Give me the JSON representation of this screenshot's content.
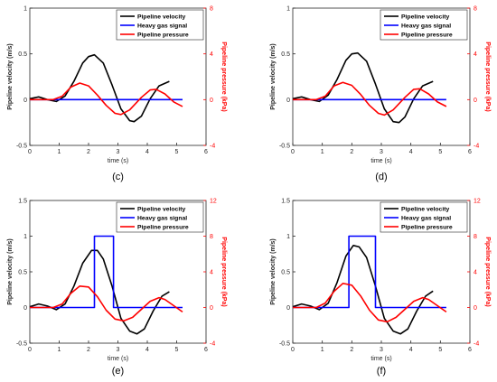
{
  "chart_data": [
    {
      "type": "line",
      "caption": "(c)",
      "xlabel": "time (s)",
      "ylabel_left": "Pipeline velocity (m/s)",
      "ylabel_right": "Pipeline pressure (kPa)",
      "xlim": [
        0,
        6
      ],
      "ylim_left": [
        -0.5,
        1
      ],
      "ylim_right": [
        -4,
        8
      ],
      "xticks": [
        "0",
        "1",
        "2",
        "3",
        "4",
        "5",
        "6"
      ],
      "yticks_left": [
        "-0.5",
        "0",
        "0.5",
        "1"
      ],
      "yticks_right": [
        "-4",
        "0",
        "4",
        "8"
      ],
      "legend_position": "top-right",
      "series": [
        {
          "name": "Pipeline velocity",
          "color": "#000000",
          "axis": "left",
          "x": [
            0,
            0.3,
            0.6,
            0.9,
            1.2,
            1.5,
            1.8,
            2.0,
            2.2,
            2.5,
            2.8,
            3.1,
            3.4,
            3.55,
            3.8,
            4.1,
            4.4,
            4.75
          ],
          "y": [
            0.01,
            0.03,
            0.0,
            -0.02,
            0.04,
            0.2,
            0.4,
            0.47,
            0.49,
            0.4,
            0.16,
            -0.1,
            -0.23,
            -0.24,
            -0.18,
            0.01,
            0.15,
            0.2
          ]
        },
        {
          "name": "Heavy gas signal",
          "color": "#0000ff",
          "axis": "left",
          "x": [
            0,
            5.2
          ],
          "y": [
            0,
            0
          ]
        },
        {
          "name": "Pipeline pressure",
          "color": "#ff0000",
          "axis": "right",
          "x": [
            0,
            0.8,
            1.1,
            1.4,
            1.7,
            2.0,
            2.3,
            2.6,
            2.9,
            3.1,
            3.4,
            3.8,
            4.1,
            4.3,
            4.6,
            4.9,
            5.2
          ],
          "y": [
            0,
            0,
            0.3,
            1.1,
            1.45,
            1.2,
            0.4,
            -0.5,
            -1.2,
            -1.3,
            -0.9,
            0.2,
            0.85,
            0.9,
            0.5,
            -0.2,
            -0.6
          ]
        }
      ]
    },
    {
      "type": "line",
      "caption": "(d)",
      "xlabel": "time (s)",
      "ylabel_left": "Pipeline velocity (m/s)",
      "ylabel_right": "Pipeline pressure (kPa)",
      "xlim": [
        0,
        6
      ],
      "ylim_left": [
        -0.5,
        1
      ],
      "ylim_right": [
        -4,
        8
      ],
      "xticks": [
        "0",
        "1",
        "2",
        "3",
        "4",
        "5",
        "6"
      ],
      "yticks_left": [
        "-0.5",
        "0",
        "0.5",
        "1"
      ],
      "yticks_right": [
        "-4",
        "0",
        "4",
        "8"
      ],
      "legend_position": "top-right",
      "series": [
        {
          "name": "Pipeline velocity",
          "color": "#000000",
          "axis": "left",
          "x": [
            0,
            0.3,
            0.6,
            0.9,
            1.2,
            1.5,
            1.8,
            2.0,
            2.2,
            2.5,
            2.8,
            3.1,
            3.4,
            3.6,
            3.8,
            4.1,
            4.4,
            4.75
          ],
          "y": [
            0.01,
            0.03,
            0.0,
            -0.02,
            0.05,
            0.22,
            0.43,
            0.5,
            0.51,
            0.42,
            0.17,
            -0.1,
            -0.24,
            -0.25,
            -0.19,
            0.01,
            0.15,
            0.2
          ]
        },
        {
          "name": "Heavy gas signal",
          "color": "#0000ff",
          "axis": "left",
          "x": [
            0,
            5.2
          ],
          "y": [
            0,
            0
          ]
        },
        {
          "name": "Pipeline pressure",
          "color": "#ff0000",
          "axis": "right",
          "x": [
            0,
            0.8,
            1.1,
            1.4,
            1.7,
            2.0,
            2.3,
            2.6,
            2.9,
            3.1,
            3.4,
            3.8,
            4.1,
            4.3,
            4.6,
            4.9,
            5.2
          ],
          "y": [
            0,
            0,
            0.3,
            1.2,
            1.5,
            1.25,
            0.45,
            -0.5,
            -1.2,
            -1.35,
            -0.9,
            0.2,
            0.9,
            0.95,
            0.5,
            -0.2,
            -0.6
          ]
        }
      ]
    },
    {
      "type": "line",
      "caption": "(e)",
      "xlabel": "time (s)",
      "ylabel_left": "Pipeline velocity (m/s)",
      "ylabel_right": "Pipeline pressure (kPa)",
      "xlim": [
        0,
        6
      ],
      "ylim_left": [
        -0.5,
        1.5
      ],
      "ylim_right": [
        -4,
        12
      ],
      "xticks": [
        "0",
        "1",
        "2",
        "3",
        "4",
        "5",
        "6"
      ],
      "yticks_left": [
        "-0.5",
        "0",
        "0.5",
        "1",
        "1.5"
      ],
      "yticks_right": [
        "-4",
        "0",
        "4",
        "8",
        "12"
      ],
      "legend_position": "top-right",
      "series": [
        {
          "name": "Pipeline velocity",
          "color": "#000000",
          "axis": "left",
          "x": [
            0,
            0.3,
            0.6,
            0.9,
            1.2,
            1.5,
            1.8,
            2.1,
            2.3,
            2.5,
            2.8,
            3.1,
            3.4,
            3.65,
            3.9,
            4.2,
            4.5,
            4.75
          ],
          "y": [
            0.01,
            0.05,
            0.02,
            -0.03,
            0.05,
            0.3,
            0.62,
            0.8,
            0.8,
            0.68,
            0.3,
            -0.15,
            -0.33,
            -0.37,
            -0.3,
            -0.05,
            0.16,
            0.22
          ]
        },
        {
          "name": "Heavy gas signal",
          "color": "#0000ff",
          "axis": "left",
          "x": [
            0,
            2.2,
            2.2,
            2.85,
            2.85,
            5.2
          ],
          "y": [
            0,
            0,
            1,
            1,
            0,
            0
          ]
        },
        {
          "name": "Pipeline pressure",
          "color": "#ff0000",
          "axis": "right",
          "x": [
            0,
            0.8,
            1.1,
            1.4,
            1.7,
            2.0,
            2.3,
            2.6,
            2.9,
            3.2,
            3.5,
            3.8,
            4.1,
            4.4,
            4.6,
            4.9,
            5.2
          ],
          "y": [
            0,
            0,
            0.4,
            1.6,
            2.4,
            2.3,
            1.2,
            -0.3,
            -1.3,
            -1.5,
            -1.1,
            -0.2,
            0.7,
            1.1,
            0.9,
            0.2,
            -0.5
          ]
        }
      ]
    },
    {
      "type": "line",
      "caption": "(f)",
      "xlabel": "time (s)",
      "ylabel_left": "Pipeline velocity (m/s)",
      "ylabel_right": "Pipeline pressure (kPa)",
      "xlim": [
        0,
        6
      ],
      "ylim_left": [
        -0.5,
        1.5
      ],
      "ylim_right": [
        -4,
        12
      ],
      "xticks": [
        "0",
        "1",
        "2",
        "3",
        "4",
        "5",
        "6"
      ],
      "yticks_left": [
        "-0.5",
        "0",
        "0.5",
        "1",
        "1.5"
      ],
      "yticks_right": [
        "-4",
        "0",
        "4",
        "8",
        "12"
      ],
      "legend_position": "top-right",
      "series": [
        {
          "name": "Pipeline velocity",
          "color": "#000000",
          "axis": "left",
          "x": [
            0,
            0.3,
            0.6,
            0.9,
            1.2,
            1.5,
            1.8,
            2.05,
            2.25,
            2.5,
            2.8,
            3.1,
            3.4,
            3.65,
            3.9,
            4.2,
            4.5,
            4.75
          ],
          "y": [
            0.01,
            0.05,
            0.02,
            -0.03,
            0.06,
            0.35,
            0.72,
            0.87,
            0.85,
            0.7,
            0.3,
            -0.15,
            -0.33,
            -0.37,
            -0.3,
            -0.05,
            0.16,
            0.23
          ]
        },
        {
          "name": "Heavy gas signal",
          "color": "#0000ff",
          "axis": "left",
          "x": [
            0,
            1.9,
            1.9,
            2.8,
            2.8,
            5.2
          ],
          "y": [
            0,
            0,
            1,
            1,
            0,
            0
          ]
        },
        {
          "name": "Pipeline pressure",
          "color": "#ff0000",
          "axis": "right",
          "x": [
            0,
            0.8,
            1.1,
            1.4,
            1.7,
            2.0,
            2.3,
            2.6,
            2.9,
            3.2,
            3.5,
            3.8,
            4.1,
            4.4,
            4.6,
            4.9,
            5.2
          ],
          "y": [
            0,
            0,
            0.5,
            1.8,
            2.7,
            2.5,
            1.3,
            -0.3,
            -1.4,
            -1.6,
            -1.1,
            -0.2,
            0.7,
            1.1,
            0.9,
            0.2,
            -0.5
          ]
        }
      ]
    }
  ]
}
